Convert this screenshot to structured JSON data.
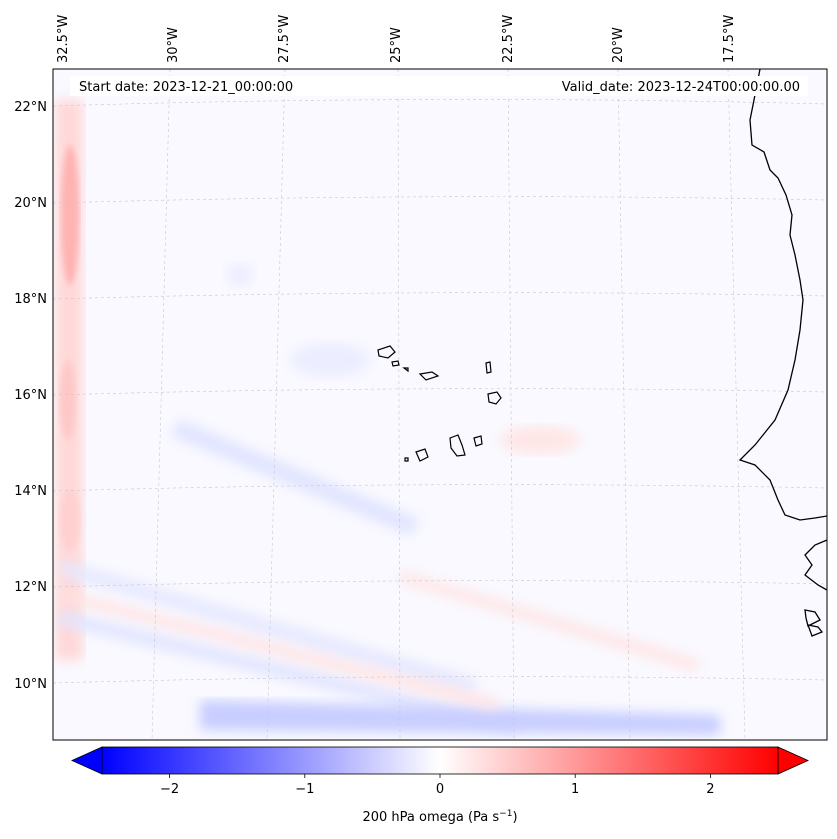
{
  "header": {
    "start_date": "Start date: 2023-12-21_00:00:00",
    "valid_date": "Valid_date: 2023-12-24T00:00:00.00"
  },
  "map": {
    "lon_labels": [
      "32.5°W",
      "30°W",
      "27.5°W",
      "25°W",
      "22.5°W",
      "20°W",
      "17.5°W"
    ],
    "lat_labels": [
      "22°N",
      "20°N",
      "18°N",
      "16°N",
      "14°N",
      "12°N",
      "10°N"
    ],
    "features": [
      "coastline-west-africa",
      "cape-verde-islands"
    ]
  },
  "colorbar": {
    "tick_labels": [
      "−2",
      "−1",
      "0",
      "1",
      "2"
    ],
    "tick_values": [
      -2,
      -1,
      0,
      1,
      2
    ],
    "range": [
      -2.5,
      2.5
    ],
    "label": "200 hPa omega (Pa s",
    "label_unit_sup": "−1",
    "label_tail": ")",
    "colors": {
      "negative": "#0000ff",
      "zero": "#ffffff",
      "positive": "#ff0000"
    }
  }
}
